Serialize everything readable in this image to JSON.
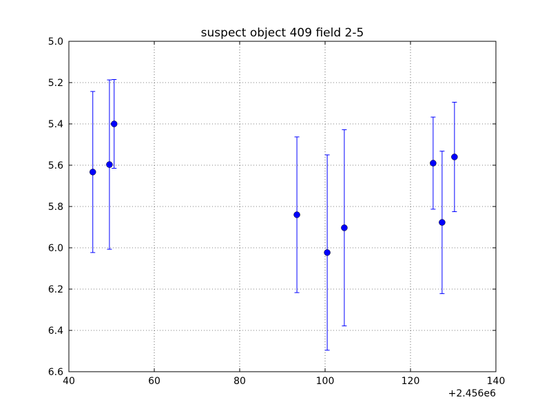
{
  "chart_data": {
    "type": "errorbar",
    "title": "suspect object 409 field 2-5",
    "x_offset_label": "+2.456e6",
    "series": [
      {
        "color": "#0000ff",
        "x": [
          45.6,
          49.5,
          50.6,
          93.4,
          100.5,
          104.5,
          125.3,
          127.4,
          130.3
        ],
        "values": [
          5.633,
          5.597,
          5.4,
          5.84,
          6.023,
          5.903,
          5.59,
          5.877,
          5.56
        ],
        "yerr": [
          0.39,
          0.41,
          0.215,
          0.377,
          0.473,
          0.475,
          0.223,
          0.345,
          0.265
        ]
      }
    ],
    "xlim": [
      40,
      140
    ],
    "xticks": [
      40,
      60,
      80,
      100,
      120,
      140
    ],
    "ylim": [
      6.6,
      5.0
    ],
    "yticks": [
      {
        "value": 5,
        "label": "5.0"
      },
      5.2,
      5.4,
      5.6,
      5.8,
      {
        "value": 6,
        "label": "6.0"
      },
      6.2,
      6.4,
      6.6
    ],
    "grid": true
  }
}
